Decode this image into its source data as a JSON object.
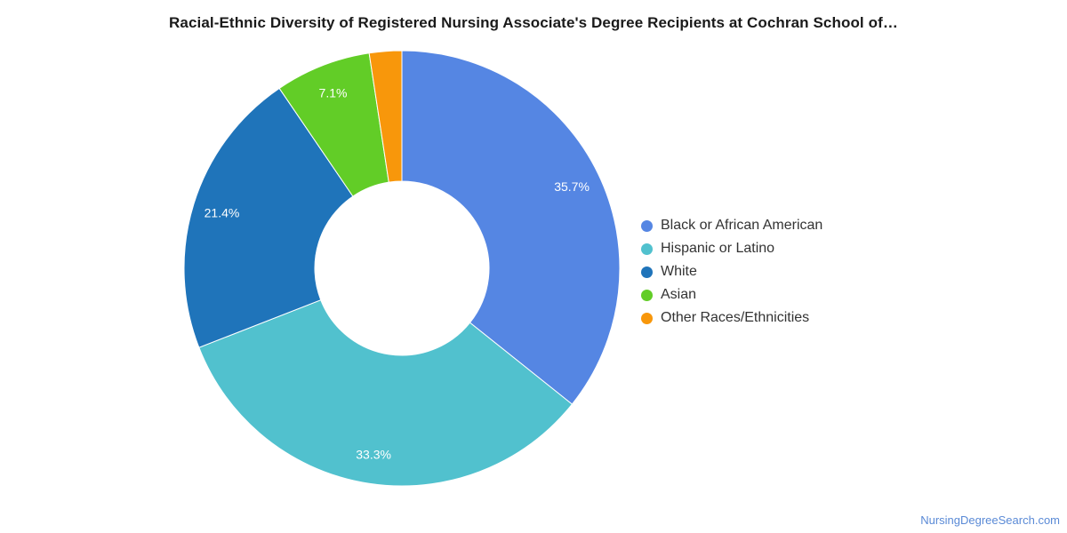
{
  "title": "Racial-Ethnic Diversity of Registered Nursing Associate's Degree Recipients at Cochran School of…",
  "source": "NursingDegreeSearch.com",
  "chart_data": {
    "type": "pie",
    "variant": "donut",
    "legend_position": "right",
    "slices": [
      {
        "name": "Black or African American",
        "value": 35.7,
        "label": "35.7%",
        "color": "#5586e3"
      },
      {
        "name": "Hispanic or Latino",
        "value": 33.3,
        "label": "33.3%",
        "color": "#51c1ce"
      },
      {
        "name": "White",
        "value": 21.4,
        "label": "21.4%",
        "color": "#1f74ba"
      },
      {
        "name": "Asian",
        "value": 7.1,
        "label": "7.1%",
        "color": "#62cd27"
      },
      {
        "name": "Other Races/Ethnicities",
        "value": 2.4,
        "label": "",
        "color": "#f8970b"
      }
    ]
  }
}
